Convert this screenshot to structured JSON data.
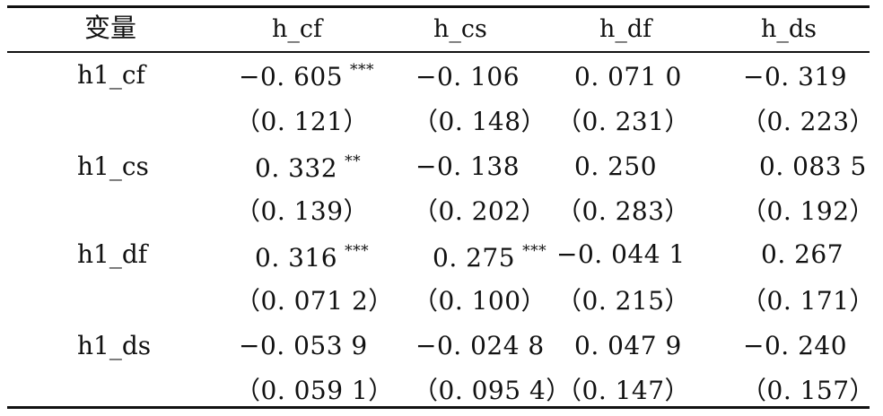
{
  "table": {
    "headers": [
      "变量",
      "h_cf",
      "h_cs",
      "h_df",
      "h_ds"
    ],
    "rows": [
      {
        "label": "h1_cf",
        "coef": [
          {
            "value": "−0. 605",
            "stars": "***"
          },
          {
            "value": "−0. 106",
            "stars": ""
          },
          {
            "value": "0. 071 0",
            "stars": ""
          },
          {
            "value": "−0. 319",
            "stars": ""
          }
        ],
        "se": [
          "（0. 121）",
          "（0. 148）",
          "（0. 231）",
          "（0. 223）"
        ]
      },
      {
        "label": "h1_cs",
        "coef": [
          {
            "value": "0. 332",
            "stars": "**"
          },
          {
            "value": "−0. 138",
            "stars": ""
          },
          {
            "value": "0. 250",
            "stars": ""
          },
          {
            "value": "0. 083 5",
            "stars": ""
          }
        ],
        "se": [
          "（0. 139）",
          "（0. 202）",
          "（0. 283）",
          "（0. 192）"
        ]
      },
      {
        "label": "h1_df",
        "coef": [
          {
            "value": "0. 316",
            "stars": "***"
          },
          {
            "value": "0. 275",
            "stars": "***"
          },
          {
            "value": "−0. 044 1",
            "stars": ""
          },
          {
            "value": "0. 267",
            "stars": ""
          }
        ],
        "se": [
          "（0. 071 2）",
          "（0. 100）",
          "（0. 215）",
          "（0. 171）"
        ]
      },
      {
        "label": "h1_ds",
        "coef": [
          {
            "value": "−0. 053 9",
            "stars": ""
          },
          {
            "value": "−0. 024 8",
            "stars": ""
          },
          {
            "value": "0. 047 9",
            "stars": ""
          },
          {
            "value": "−0. 240",
            "stars": ""
          }
        ],
        "se": [
          "（0. 059 1）",
          "（0. 095 4）",
          "（0. 147）",
          "（0. 157）"
        ]
      }
    ]
  }
}
